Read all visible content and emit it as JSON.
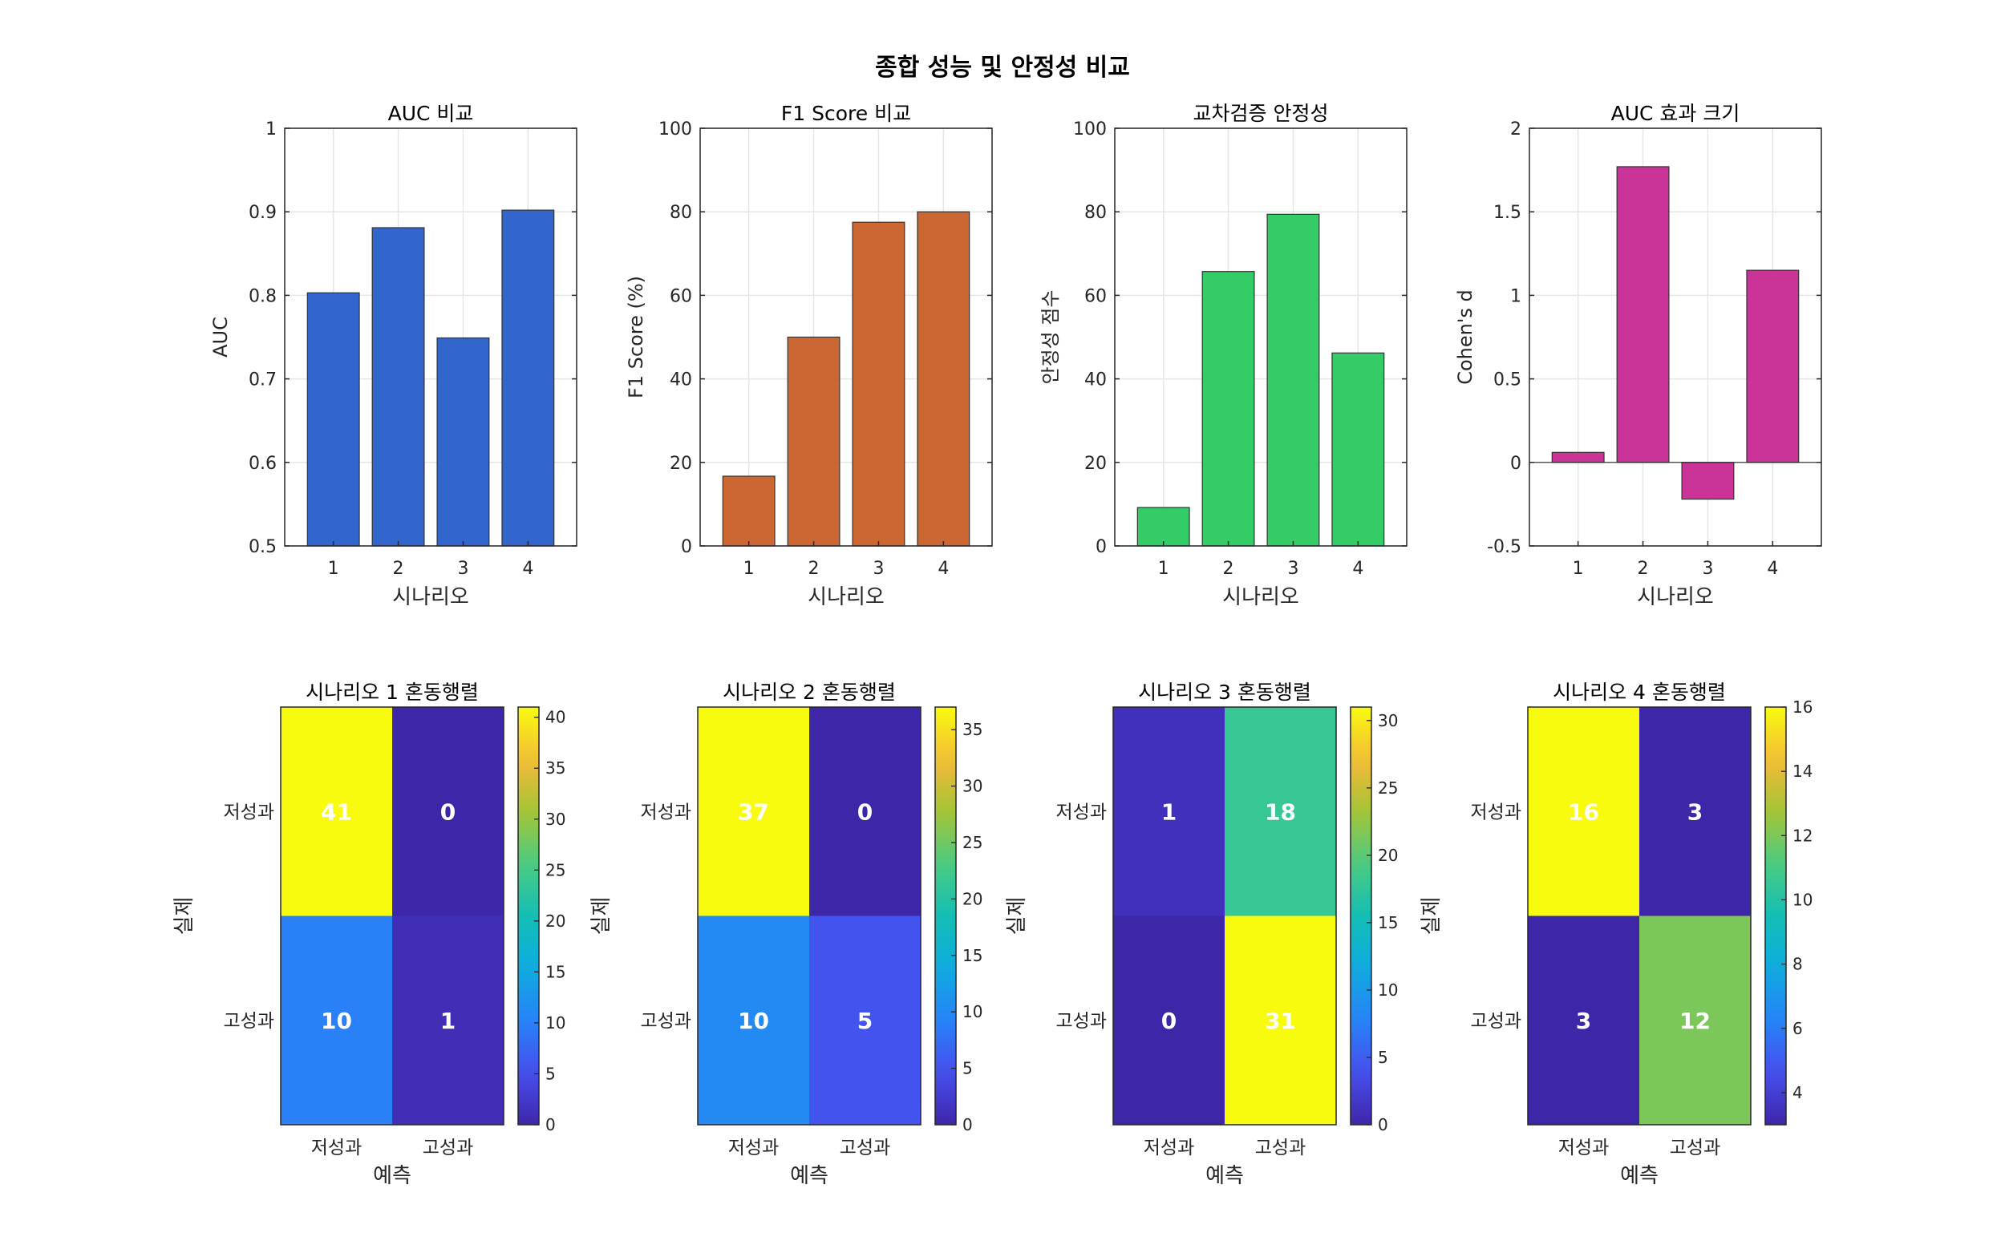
{
  "figure": {
    "title": "종합 성능 및 안정성 비교"
  },
  "colors": {
    "auc_bar": "#3366cc",
    "f1_bar": "#cc6633",
    "stability_bar": "#33cc66",
    "effect_bar": "#cc3399",
    "axis": "#262626",
    "grid": "#e6e6e6",
    "cell_text": "#ffffff"
  },
  "chart_data": [
    {
      "type": "bar",
      "title": "AUC 비교",
      "xlabel": "시나리오",
      "ylabel": "AUC",
      "categories": [
        "1",
        "2",
        "3",
        "4"
      ],
      "values": [
        0.803,
        0.881,
        0.749,
        0.902
      ],
      "ylim": [
        0.5,
        1
      ],
      "yticks": [
        0.5,
        0.6,
        0.7,
        0.8,
        0.9,
        1
      ],
      "ytick_labels": [
        "0.5",
        "0.6",
        "0.7",
        "0.8",
        "0.9",
        "1"
      ],
      "grid": true,
      "color": "#3366cc"
    },
    {
      "type": "bar",
      "title": "F1 Score 비교",
      "xlabel": "시나리오",
      "ylabel": "F1 Score (%)",
      "categories": [
        "1",
        "2",
        "3",
        "4"
      ],
      "values": [
        16.7,
        50.0,
        77.5,
        80.0
      ],
      "ylim": [
        0,
        100
      ],
      "yticks": [
        0,
        20,
        40,
        60,
        80,
        100
      ],
      "ytick_labels": [
        "0",
        "20",
        "40",
        "60",
        "80",
        "100"
      ],
      "grid": true,
      "color": "#cc6633"
    },
    {
      "type": "bar",
      "title": "교차검증 안정성",
      "xlabel": "시나리오",
      "ylabel": "안정성 점수",
      "categories": [
        "1",
        "2",
        "3",
        "4"
      ],
      "values": [
        9.2,
        65.7,
        79.4,
        46.2
      ],
      "ylim": [
        0,
        100
      ],
      "yticks": [
        0,
        20,
        40,
        60,
        80,
        100
      ],
      "ytick_labels": [
        "0",
        "20",
        "40",
        "60",
        "80",
        "100"
      ],
      "grid": true,
      "color": "#33cc66"
    },
    {
      "type": "bar",
      "title": "AUC 효과 크기",
      "xlabel": "시나리오",
      "ylabel": "Cohen's d",
      "categories": [
        "1",
        "2",
        "3",
        "4"
      ],
      "values": [
        0.06,
        1.77,
        -0.22,
        1.15
      ],
      "ylim": [
        -0.5,
        2
      ],
      "yticks": [
        -0.5,
        0,
        0.5,
        1,
        1.5,
        2
      ],
      "ytick_labels": [
        "-0.5",
        "0",
        "0.5",
        "1",
        "1.5",
        "2"
      ],
      "grid": true,
      "color": "#cc3399"
    },
    {
      "type": "heatmap",
      "title": "시나리오 1 혼동행렬",
      "xlabel": "예측",
      "ylabel": "실제",
      "x_categories": [
        "저성과",
        "고성과"
      ],
      "y_categories": [
        "저성과",
        "고성과"
      ],
      "values": [
        [
          41,
          0
        ],
        [
          10,
          1
        ]
      ],
      "clim": [
        0,
        41
      ],
      "colorbar_ticks": [
        0,
        5,
        10,
        15,
        20,
        25,
        30,
        35,
        40
      ],
      "colorbar_tick_labels": [
        "0",
        "5",
        "10",
        "15",
        "20",
        "25",
        "30",
        "35",
        "40"
      ],
      "colormap": "parula"
    },
    {
      "type": "heatmap",
      "title": "시나리오 2 혼동행렬",
      "xlabel": "예측",
      "ylabel": "실제",
      "x_categories": [
        "저성과",
        "고성과"
      ],
      "y_categories": [
        "저성과",
        "고성과"
      ],
      "values": [
        [
          37,
          0
        ],
        [
          10,
          5
        ]
      ],
      "clim": [
        0,
        37
      ],
      "colorbar_ticks": [
        0,
        5,
        10,
        15,
        20,
        25,
        30,
        35
      ],
      "colorbar_tick_labels": [
        "0",
        "5",
        "10",
        "15",
        "20",
        "25",
        "30",
        "35"
      ],
      "colormap": "parula"
    },
    {
      "type": "heatmap",
      "title": "시나리오 3 혼동행렬",
      "xlabel": "예측",
      "ylabel": "실제",
      "x_categories": [
        "저성과",
        "고성과"
      ],
      "y_categories": [
        "저성과",
        "고성과"
      ],
      "values": [
        [
          1,
          18
        ],
        [
          0,
          31
        ]
      ],
      "clim": [
        0,
        31
      ],
      "colorbar_ticks": [
        0,
        5,
        10,
        15,
        20,
        25,
        30
      ],
      "colorbar_tick_labels": [
        "0",
        "5",
        "10",
        "15",
        "20",
        "25",
        "30"
      ],
      "colormap": "parula"
    },
    {
      "type": "heatmap",
      "title": "시나리오 4 혼동행렬",
      "xlabel": "예측",
      "ylabel": "실제",
      "x_categories": [
        "저성과",
        "고성과"
      ],
      "y_categories": [
        "저성과",
        "고성과"
      ],
      "values": [
        [
          16,
          3
        ],
        [
          3,
          12
        ]
      ],
      "clim": [
        3,
        16
      ],
      "colorbar_ticks": [
        4,
        6,
        8,
        10,
        12,
        14,
        16
      ],
      "colorbar_tick_labels": [
        "4",
        "6",
        "8",
        "10",
        "12",
        "14",
        "16"
      ],
      "colormap": "parula"
    }
  ]
}
